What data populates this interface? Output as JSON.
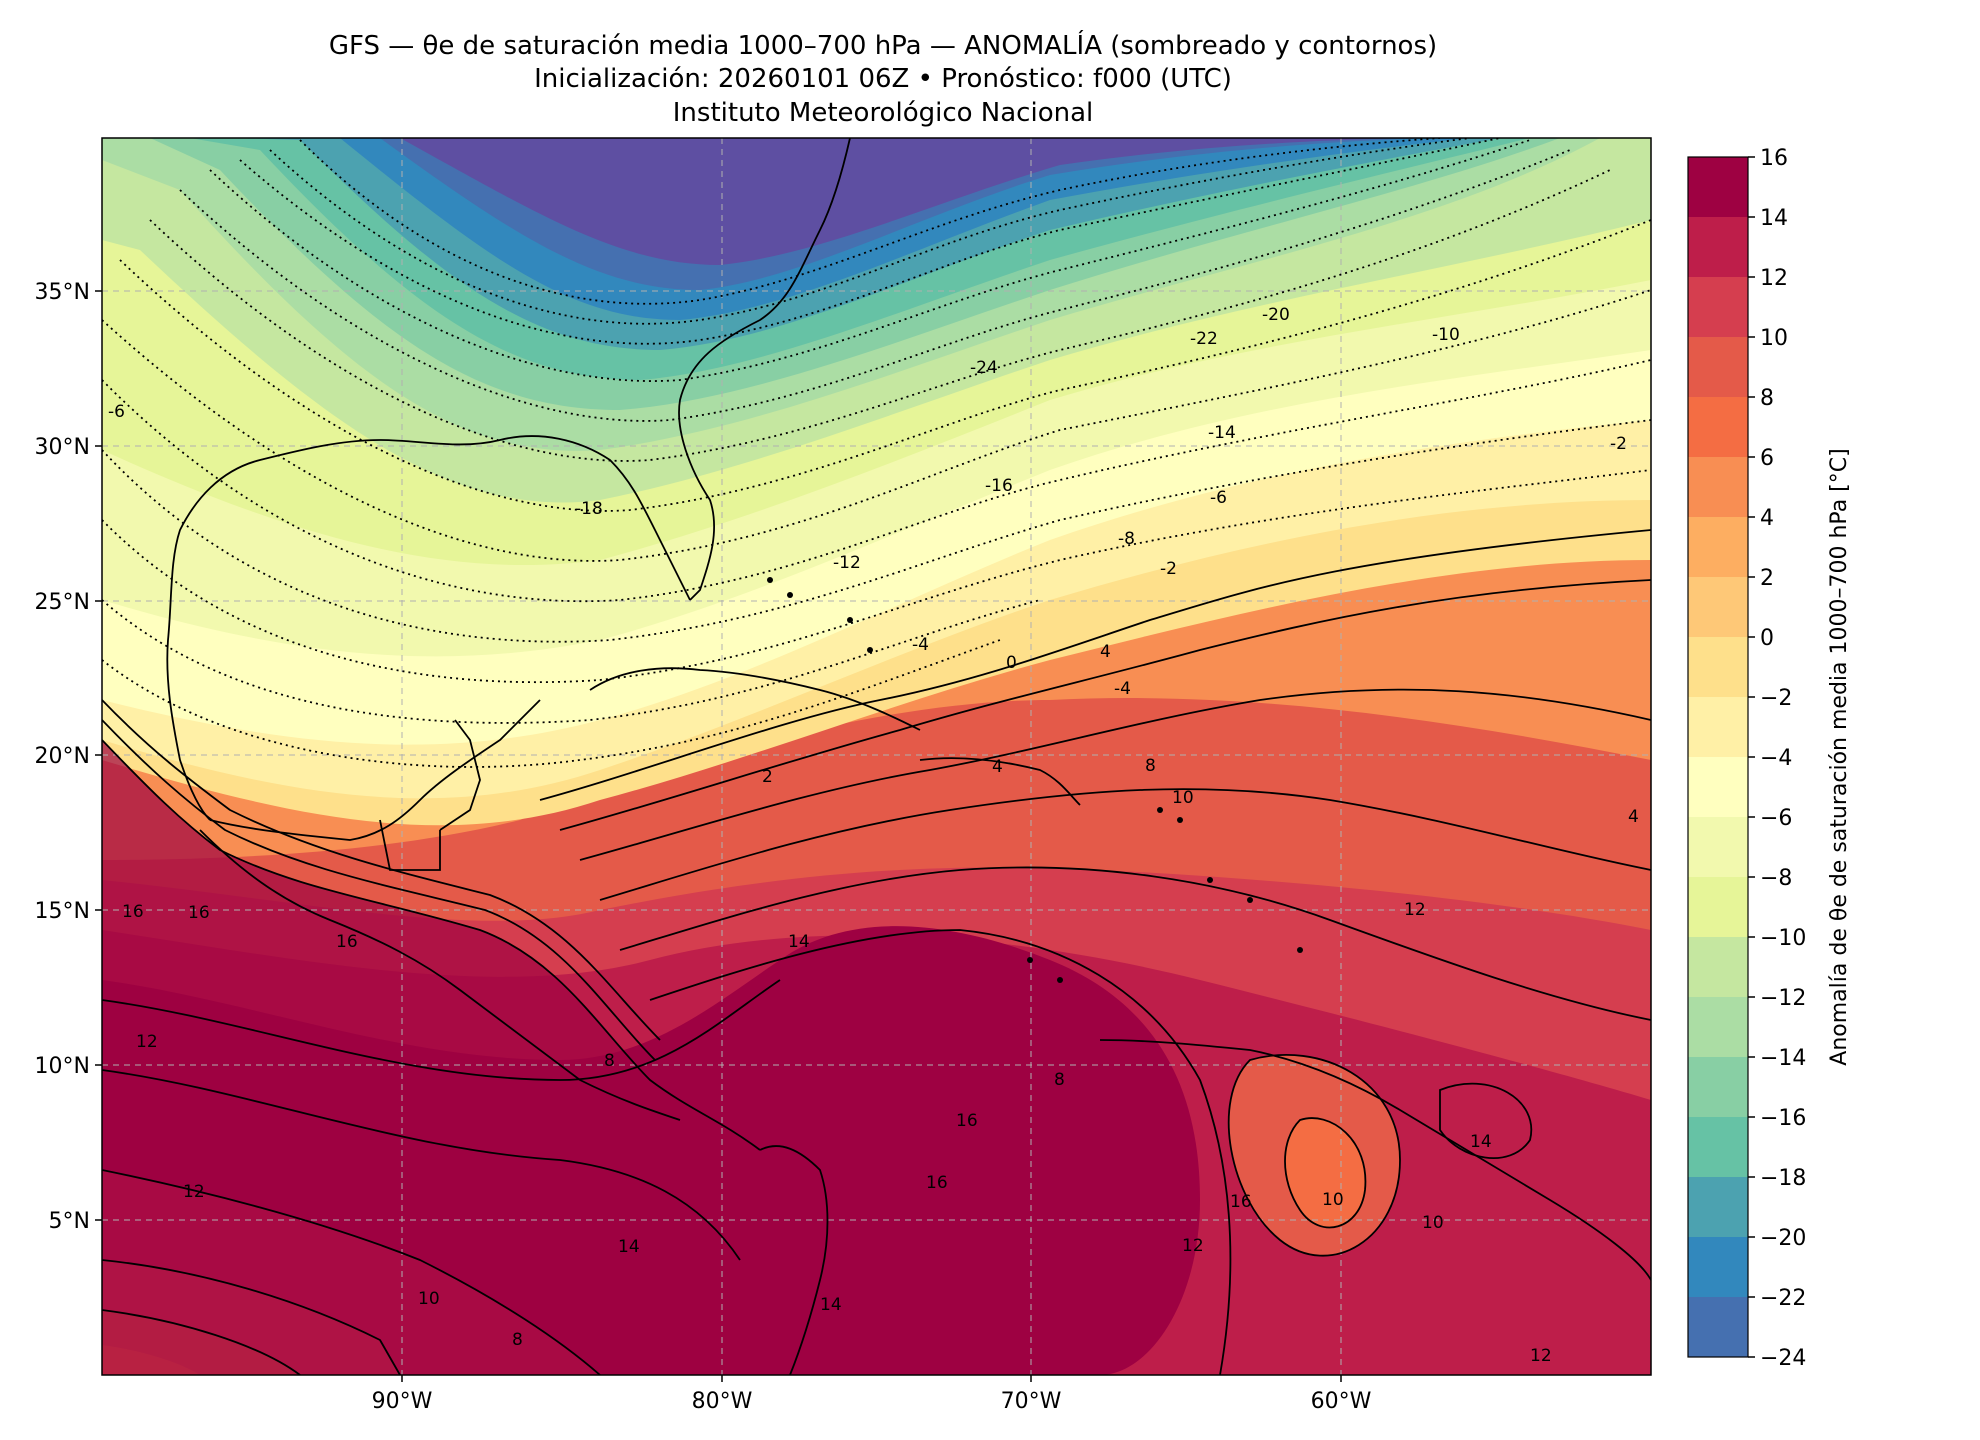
{
  "header": {
    "title_line1": "GFS — θe de saturación media 1000–700 hPa — ANOMALÍA (sombreado y contornos)",
    "title_line2": "Inicialización: 20260101 06Z   •   Pronóstico: f000 (UTC)",
    "title_line3": "Instituto Meteorológico Nacional"
  },
  "map": {
    "lon_labels": [
      "90°W",
      "80°W",
      "70°W",
      "60°W"
    ],
    "lat_labels": [
      "35°N",
      "30°N",
      "25°N",
      "20°N",
      "15°N",
      "10°N",
      "5°N"
    ],
    "gridlines": "dashed",
    "land_outlines": "coastlines and borders"
  },
  "colorbar": {
    "label": "Anomalía de θe de saturación media 1000–700 hPa [°C]",
    "ticks": [
      "16",
      "14",
      "12",
      "10",
      "8",
      "6",
      "4",
      "2",
      "0",
      "−2",
      "−4",
      "−6",
      "−8",
      "−10",
      "−12",
      "−14",
      "−16",
      "−18",
      "−20",
      "−22",
      "−24"
    ],
    "colors": [
      "#9e0142",
      "#be1e4a",
      "#d53e4f",
      "#e45a49",
      "#f46d43",
      "#f88e53",
      "#fdae61",
      "#fec877",
      "#fee08b",
      "#fff0a6",
      "#ffffbf",
      "#f2f9ae",
      "#e6f598",
      "#c5e7a0",
      "#abdda4",
      "#88cfa4",
      "#66c2a5",
      "#4ca2b0",
      "#3288bd",
      "#4570b0",
      "#5e4fa2"
    ]
  },
  "contour_labels": [
    "-24",
    "-22",
    "-20",
    "-18",
    "-16",
    "-14",
    "-12",
    "-10",
    "-8",
    "-6",
    "-6",
    "-4",
    "-4",
    "-2",
    "-2",
    "0",
    "2",
    "4",
    "4",
    "4",
    "8",
    "8",
    "8",
    "8",
    "10",
    "10",
    "10",
    "10",
    "12",
    "12",
    "12",
    "12",
    "12",
    "14",
    "14",
    "14",
    "14",
    "16",
    "16",
    "16",
    "16",
    "16",
    "16"
  ]
}
